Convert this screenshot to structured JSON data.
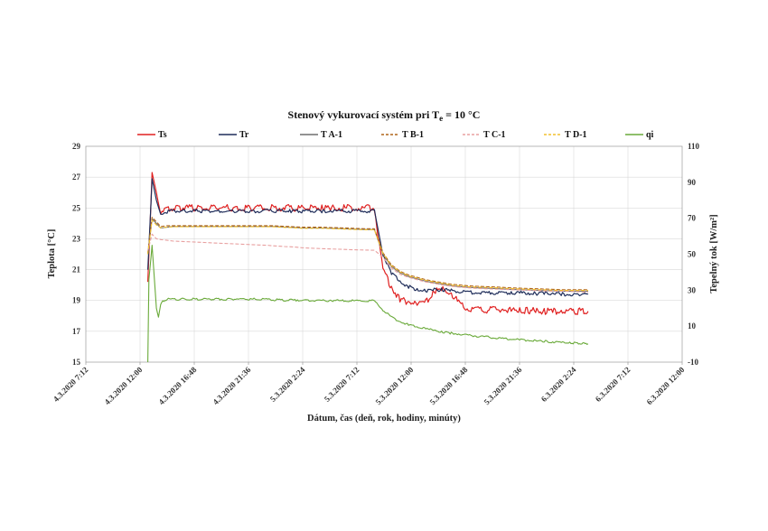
{
  "chart_data": {
    "type": "line",
    "title": "Stenový vykurovací systém pri T",
    "title_sub": "e",
    "title_suffix": " = 10 °C",
    "xlabel": "Dátum,  čas (deň, rok, hodiny, minúty)",
    "ylabel": "Teplota [°C]",
    "y2label": "Tepelný tok [W/m²]",
    "ylim": [
      15,
      29
    ],
    "y_ticks": [
      "15",
      "17",
      "19",
      "21",
      "23",
      "25",
      "27",
      "29"
    ],
    "y2lim": [
      -10,
      110
    ],
    "y2_ticks": [
      "-10",
      "10",
      "30",
      "50",
      "70",
      "90",
      "110"
    ],
    "x_ticks": [
      "4.3.2020 7:12",
      "4.3.2020 12:00",
      "4.3.2020 16:48",
      "4.3.2020 21:36",
      "5.3.2020 2:24",
      "5.3.2020 7:12",
      "5.3.2020 12:00",
      "5.3.2020 16:48",
      "5.3.2020 21:36",
      "6.3.2020 2:24",
      "6.3.2020 7:12",
      "6.3.2020 12:00"
    ],
    "grid": true,
    "legend_position": "top",
    "series": [
      {
        "name": "Ts",
        "color": "#e02020",
        "dash": false,
        "axis": "left",
        "noise": 0.22,
        "x": [
          0.0,
          0.02,
          0.04,
          0.06,
          0.09,
          0.12,
          0.2,
          0.28,
          0.36,
          0.44,
          0.52,
          0.56,
          0.58,
          0.61,
          0.64,
          0.67,
          0.7,
          0.72,
          0.75,
          0.78,
          0.82,
          0.86,
          0.9,
          0.94,
          0.98,
          1.02,
          1.06,
          1.1,
          1.14,
          1.18,
          1.22,
          1.26,
          1.3,
          1.34,
          1.38,
          1.42,
          1.46,
          1.5,
          1.54,
          1.58,
          1.62,
          1.66,
          1.7,
          1.74,
          1.78,
          1.82,
          1.86,
          1.9,
          1.94,
          1.98,
          2.0,
          2.02,
          2.04,
          2.06
        ],
        "y": [
          20.2,
          27.3,
          26.0,
          24.6,
          24.9,
          25.0,
          25.0,
          25.0,
          25.0,
          25.0,
          25.0,
          25.0,
          25.0,
          25.0,
          25.0,
          25.0,
          25.0,
          25.0,
          25.0,
          25.0,
          25.0,
          25.0,
          25.0,
          25.0,
          25.0,
          25.0,
          25.0,
          21.0,
          19.8,
          19.1,
          18.9,
          18.8,
          18.9,
          19.6,
          19.7,
          19.5,
          18.7,
          18.45,
          18.4,
          18.4,
          18.4,
          18.4,
          18.35,
          18.35,
          18.35,
          18.3,
          18.3,
          18.3,
          18.3,
          18.3,
          18.3,
          18.3,
          18.3,
          18.3
        ]
      },
      {
        "name": "Tr",
        "color": "#1f2d5a",
        "dash": false,
        "axis": "left",
        "noise": 0.12,
        "x": [
          0.0,
          0.02,
          0.04,
          0.06,
          0.09,
          0.12,
          0.2,
          0.28,
          0.36,
          0.44,
          0.52,
          0.56,
          0.58,
          0.61,
          0.64,
          0.67,
          0.7,
          0.72,
          0.75,
          0.78,
          0.82,
          0.86,
          0.9,
          0.94,
          0.98,
          1.02,
          1.06,
          1.1,
          1.14,
          1.18,
          1.22,
          1.26,
          1.3,
          1.34,
          1.38,
          1.42,
          1.46,
          1.5,
          1.54,
          1.58,
          1.62,
          1.66,
          1.7,
          1.74,
          1.78,
          1.82,
          1.86,
          1.9,
          1.94,
          1.98,
          2.0,
          2.02,
          2.04,
          2.06
        ],
        "y": [
          21.0,
          26.9,
          25.5,
          24.6,
          24.75,
          24.8,
          24.8,
          24.8,
          24.8,
          24.8,
          24.8,
          24.8,
          24.8,
          24.8,
          24.8,
          24.8,
          24.8,
          24.8,
          24.8,
          24.8,
          24.8,
          24.8,
          24.8,
          24.8,
          24.8,
          24.8,
          24.8,
          22.0,
          20.8,
          20.2,
          19.9,
          19.7,
          19.6,
          19.7,
          19.7,
          19.65,
          19.6,
          19.55,
          19.5,
          19.5,
          19.5,
          19.5,
          19.5,
          19.5,
          19.45,
          19.45,
          19.45,
          19.45,
          19.4,
          19.4,
          19.4,
          19.4,
          19.4,
          19.4
        ]
      },
      {
        "name": "T A-1",
        "color": "#6e6e6e",
        "dash": false,
        "axis": "left",
        "noise": 0,
        "x": [
          0.0,
          0.02,
          0.04,
          0.06,
          0.09,
          0.12,
          0.2,
          0.28,
          0.36,
          0.44,
          0.52,
          0.56,
          0.58,
          0.61,
          0.64,
          0.67,
          0.7,
          0.72,
          0.75,
          0.78,
          0.82,
          0.86,
          0.9,
          0.94,
          0.98,
          1.02,
          1.06,
          1.1,
          1.14,
          1.18,
          1.22,
          1.26,
          1.3,
          1.34,
          1.38,
          1.42,
          1.46,
          1.5,
          1.54,
          1.58,
          1.62,
          1.66,
          1.7,
          1.74,
          1.78,
          1.82,
          1.86,
          1.9,
          1.94,
          1.98,
          2.0,
          2.02,
          2.04,
          2.06
        ],
        "y": [
          22.0,
          24.3,
          24.0,
          23.7,
          23.75,
          23.8,
          23.8,
          23.8,
          23.8,
          23.8,
          23.8,
          23.8,
          23.8,
          23.78,
          23.76,
          23.74,
          23.72,
          23.7,
          23.7,
          23.7,
          23.7,
          23.68,
          23.66,
          23.64,
          23.62,
          23.6,
          23.6,
          22.0,
          21.2,
          20.8,
          20.55,
          20.4,
          20.25,
          20.15,
          20.05,
          19.95,
          19.9,
          19.85,
          19.82,
          19.8,
          19.78,
          19.75,
          19.72,
          19.7,
          19.68,
          19.66,
          19.64,
          19.62,
          19.6,
          19.6,
          19.6,
          19.6,
          19.6,
          19.6
        ]
      },
      {
        "name": "T B-1",
        "color": "#b0651a",
        "dash": true,
        "axis": "left",
        "noise": 0,
        "x": [
          0.0,
          0.02,
          0.04,
          0.06,
          0.09,
          0.12,
          0.2,
          0.28,
          0.36,
          0.44,
          0.52,
          0.56,
          0.58,
          0.61,
          0.64,
          0.67,
          0.7,
          0.72,
          0.75,
          0.78,
          0.82,
          0.86,
          0.9,
          0.94,
          0.98,
          1.02,
          1.06,
          1.1,
          1.14,
          1.18,
          1.22,
          1.26,
          1.3,
          1.34,
          1.38,
          1.42,
          1.46,
          1.5,
          1.54,
          1.58,
          1.62,
          1.66,
          1.7,
          1.74,
          1.78,
          1.82,
          1.86,
          1.9,
          1.94,
          1.98,
          2.0,
          2.02,
          2.04,
          2.06
        ],
        "y": [
          22.1,
          24.4,
          24.1,
          23.8,
          23.85,
          23.85,
          23.85,
          23.85,
          23.85,
          23.85,
          23.85,
          23.85,
          23.85,
          23.83,
          23.81,
          23.79,
          23.77,
          23.75,
          23.75,
          23.75,
          23.75,
          23.73,
          23.71,
          23.69,
          23.67,
          23.65,
          23.65,
          22.1,
          21.3,
          20.9,
          20.65,
          20.5,
          20.35,
          20.25,
          20.15,
          20.05,
          20.0,
          19.95,
          19.92,
          19.9,
          19.88,
          19.85,
          19.82,
          19.8,
          19.78,
          19.76,
          19.74,
          19.72,
          19.7,
          19.7,
          19.7,
          19.7,
          19.7,
          19.7
        ]
      },
      {
        "name": "T C-1",
        "color": "#e8a0a0",
        "dash": true,
        "axis": "left",
        "noise": 0,
        "x": [
          0.0,
          0.02,
          0.04,
          0.06,
          0.09,
          0.12,
          0.2,
          0.28,
          0.36,
          0.44,
          0.52,
          0.56,
          0.58,
          0.61,
          0.64,
          0.67,
          0.7,
          0.72,
          0.75,
          0.78,
          0.82,
          0.86,
          0.9,
          0.94,
          0.98,
          1.02,
          1.06,
          1.1,
          1.14,
          1.18,
          1.22,
          1.26,
          1.3,
          1.34,
          1.38,
          1.42,
          1.46,
          1.5,
          1.54,
          1.58,
          1.62,
          1.66,
          1.7,
          1.74,
          1.78,
          1.82,
          1.86,
          1.9,
          1.94,
          1.98,
          2.0,
          2.02,
          2.04,
          2.06
        ],
        "y": [
          22.2,
          23.3,
          23.0,
          22.95,
          22.9,
          22.85,
          22.8,
          22.75,
          22.7,
          22.65,
          22.6,
          22.58,
          22.55,
          22.53,
          22.5,
          22.48,
          22.45,
          22.42,
          22.4,
          22.38,
          22.36,
          22.34,
          22.32,
          22.3,
          22.28,
          22.27,
          22.26,
          21.8,
          21.1,
          20.7,
          20.5,
          20.35,
          20.2,
          20.1,
          20.0,
          19.92,
          19.86,
          19.82,
          19.78,
          19.76,
          19.74,
          19.72,
          19.7,
          19.68,
          19.66,
          19.64,
          19.62,
          19.6,
          19.6,
          19.58,
          19.58,
          19.56,
          19.55,
          19.55
        ]
      },
      {
        "name": "T D-1",
        "color": "#f2c12e",
        "dash": true,
        "axis": "left",
        "noise": 0,
        "x": [
          0.0,
          0.02,
          0.04,
          0.06,
          0.09,
          0.12,
          0.2,
          0.28,
          0.36,
          0.44,
          0.52,
          0.56,
          0.58,
          0.61,
          0.64,
          0.67,
          0.7,
          0.72,
          0.75,
          0.78,
          0.82,
          0.86,
          0.9,
          0.94,
          0.98,
          1.02,
          1.06,
          1.1,
          1.14,
          1.18,
          1.22,
          1.26,
          1.3,
          1.34,
          1.38,
          1.42,
          1.46,
          1.5,
          1.54,
          1.58,
          1.62,
          1.66,
          1.7,
          1.74,
          1.78,
          1.82,
          1.86,
          1.9,
          1.94,
          1.98,
          2.0,
          2.02,
          2.04,
          2.06
        ],
        "y": [
          22.0,
          24.2,
          23.9,
          23.72,
          23.76,
          23.78,
          23.78,
          23.78,
          23.78,
          23.78,
          23.78,
          23.78,
          23.78,
          23.76,
          23.74,
          23.72,
          23.7,
          23.68,
          23.68,
          23.68,
          23.68,
          23.66,
          23.64,
          23.62,
          23.6,
          23.58,
          23.58,
          22.05,
          21.25,
          20.85,
          20.6,
          20.45,
          20.3,
          20.2,
          20.1,
          20.0,
          19.95,
          19.9,
          19.87,
          19.85,
          19.83,
          19.8,
          19.77,
          19.75,
          19.73,
          19.71,
          19.69,
          19.67,
          19.65,
          19.65,
          19.65,
          19.65,
          19.65,
          19.65
        ]
      },
      {
        "name": "qi",
        "color": "#6aaa3a",
        "dash": false,
        "axis": "right",
        "noise": 0.6,
        "x": [
          0.0,
          0.005,
          0.02,
          0.04,
          0.05,
          0.06,
          0.07,
          0.09,
          0.12,
          0.2,
          0.28,
          0.36,
          0.44,
          0.52,
          0.56,
          0.58,
          0.61,
          0.64,
          0.67,
          0.7,
          0.72,
          0.75,
          0.78,
          0.82,
          0.86,
          0.9,
          0.94,
          0.98,
          1.02,
          1.06,
          1.1,
          1.14,
          1.18,
          1.22,
          1.26,
          1.3,
          1.34,
          1.38,
          1.42,
          1.46,
          1.5,
          1.54,
          1.58,
          1.62,
          1.66,
          1.7,
          1.74,
          1.78,
          1.82,
          1.86,
          1.9,
          1.94,
          1.98,
          2.0,
          2.02,
          2.04,
          2.06
        ],
        "y": [
          -10,
          36,
          55,
          20,
          15,
          22,
          24,
          25,
          25,
          25,
          25,
          25,
          25,
          25,
          24.8,
          24.6,
          24.6,
          24.5,
          24.5,
          24.4,
          24.4,
          24.3,
          24.3,
          24.3,
          24.2,
          24.2,
          24.2,
          24.1,
          24.0,
          24.0,
          19.0,
          15.0,
          12.5,
          10.8,
          9.5,
          8.5,
          7.6,
          6.8,
          6.1,
          5.5,
          5.0,
          4.5,
          4.0,
          3.6,
          3.2,
          2.8,
          2.4,
          2.1,
          1.8,
          1.5,
          1.2,
          0.9,
          0.6,
          0.5,
          0.4,
          0.3,
          0.2
        ]
      }
    ]
  }
}
